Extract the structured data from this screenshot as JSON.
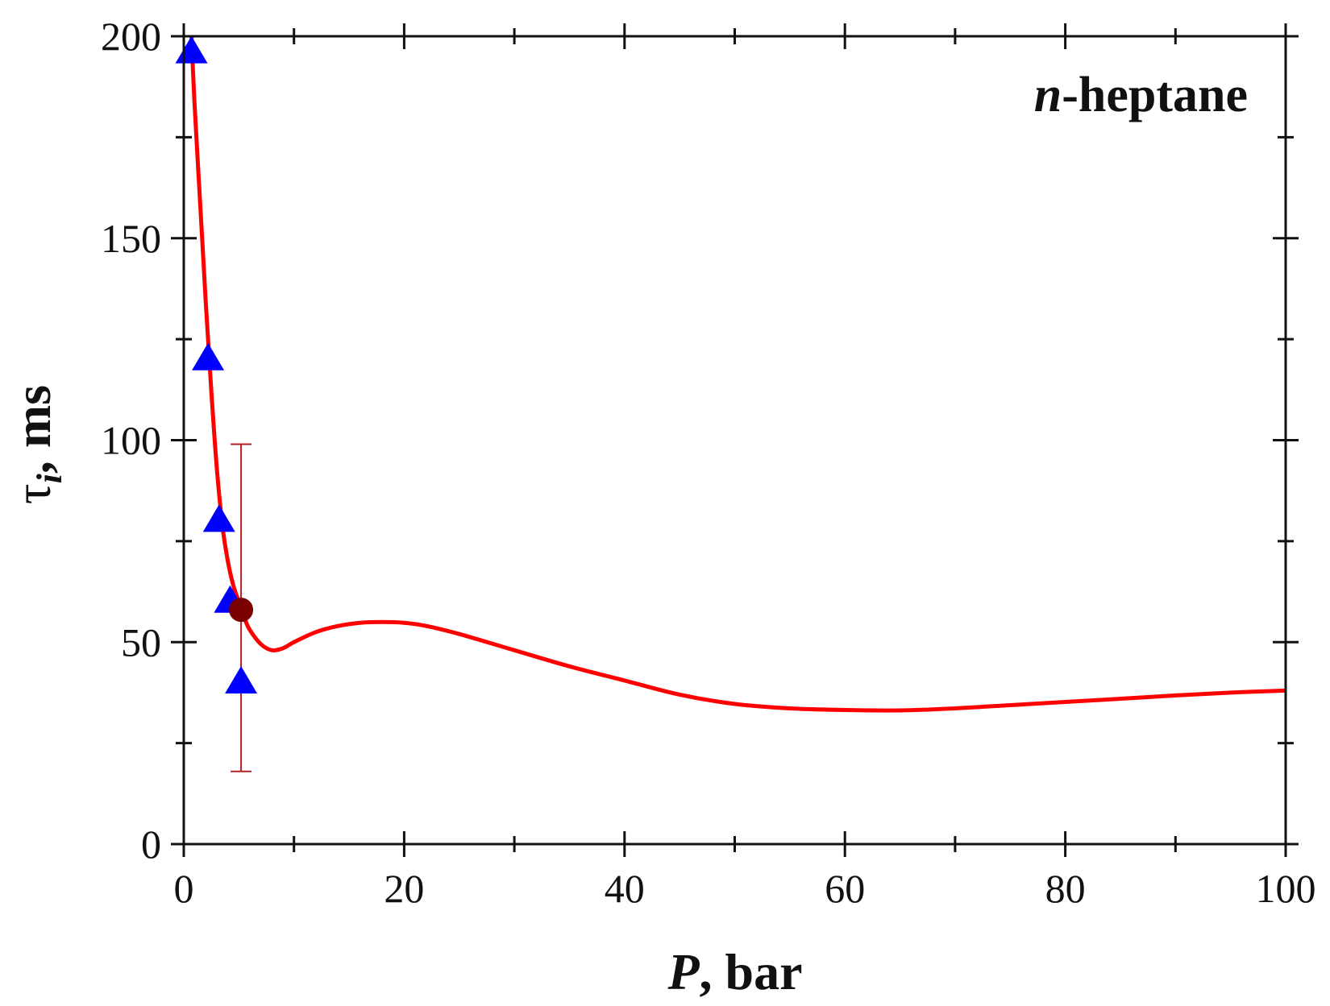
{
  "chart_data": {
    "type": "line",
    "annotation": {
      "italic": "n",
      "rest": "-heptane"
    },
    "xlabel": {
      "symbol": "P",
      "rest": ", bar"
    },
    "ylabel": {
      "symbol": "τ",
      "subscript": "i",
      "rest": ", ms"
    },
    "xlim": [
      0,
      100
    ],
    "ylim": [
      0,
      200
    ],
    "xticks": [
      "0",
      "20",
      "40",
      "60",
      "80",
      "100"
    ],
    "yticks": [
      "0",
      "50",
      "100",
      "150",
      "200"
    ],
    "grid": false,
    "colors": {
      "curve": "#ff0000",
      "triangles": "#0000ff",
      "circle": "#7a0000",
      "errorbar": "#b22222",
      "axes": "#111111"
    },
    "series": [
      {
        "kind": "curve",
        "x": [
          0.7,
          1.0,
          1.5,
          2.0,
          2.5,
          3.0,
          3.5,
          4.0,
          4.5,
          5.0,
          5.5,
          6.0,
          7.0,
          8.0,
          9.0,
          10.0,
          12.0,
          14.0,
          16.0,
          18.0,
          20.0,
          22.0,
          25.0,
          30.0,
          35.0,
          40.0,
          45.0,
          50.0,
          55.0,
          60.0,
          65.0,
          70.0,
          75.0,
          80.0,
          85.0,
          90.0,
          95.0,
          100.0
        ],
        "y": [
          200,
          182,
          158,
          134,
          112,
          93,
          79,
          70,
          64,
          60,
          56,
          53,
          49.5,
          48,
          48.5,
          50,
          52.5,
          54,
          54.8,
          55,
          54.8,
          54,
          52,
          48,
          44,
          40.5,
          37,
          34.7,
          33.6,
          33.2,
          33.1,
          33.6,
          34.4,
          35.2,
          36,
          36.8,
          37.5,
          38
        ]
      },
      {
        "kind": "triangles",
        "x": [
          0.7,
          2.2,
          3.2,
          4.2,
          5.2
        ],
        "y": [
          196,
          120,
          80,
          60,
          40
        ]
      },
      {
        "kind": "circle-with-errorbar",
        "x": [
          5.2
        ],
        "y": [
          58
        ],
        "err_low": [
          18
        ],
        "err_high": [
          99
        ]
      }
    ]
  }
}
